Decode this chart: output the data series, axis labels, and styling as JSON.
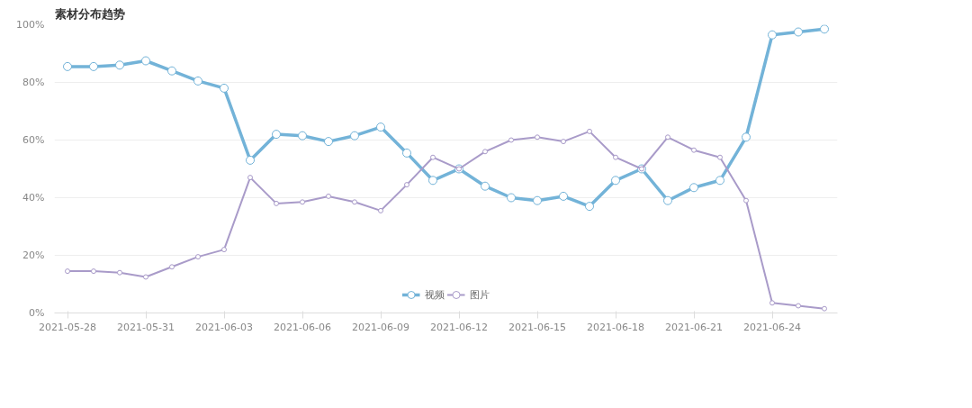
{
  "chart_data": {
    "type": "line",
    "title": "素材分布趋势",
    "x": [
      "2021-05-28",
      "2021-05-29",
      "2021-05-30",
      "2021-05-31",
      "2021-06-01",
      "2021-06-02",
      "2021-06-03",
      "2021-06-04",
      "2021-06-05",
      "2021-06-06",
      "2021-06-07",
      "2021-06-08",
      "2021-06-09",
      "2021-06-10",
      "2021-06-11",
      "2021-06-12",
      "2021-06-13",
      "2021-06-14",
      "2021-06-15",
      "2021-06-16",
      "2021-06-17",
      "2021-06-18",
      "2021-06-19",
      "2021-06-20",
      "2021-06-21",
      "2021-06-22",
      "2021-06-23",
      "2021-06-24",
      "2021-06-25",
      "2021-06-26"
    ],
    "series": [
      {
        "name": "视频",
        "color": "#73b3d8",
        "values": [
          85.5,
          85.5,
          86,
          87.5,
          84,
          80.5,
          78,
          53,
          62,
          61.5,
          59.5,
          61.5,
          64.5,
          55.5,
          46,
          50,
          44,
          40,
          39,
          40.5,
          37,
          46,
          50,
          39,
          43.5,
          46,
          61,
          96.5,
          97.5,
          98.5
        ]
      },
      {
        "name": "图片",
        "color": "#a99bc9",
        "values": [
          14.5,
          14.5,
          14,
          12.5,
          16,
          19.5,
          22,
          47,
          38,
          38.5,
          40.5,
          38.5,
          35.5,
          44.5,
          54,
          50,
          56,
          60,
          61,
          59.5,
          63,
          54,
          50,
          61,
          56.5,
          54,
          39,
          3.5,
          2.5,
          1.5
        ]
      }
    ],
    "xlim": [
      "2021-05-27T12:00",
      "2021-06-26T12:00"
    ],
    "xticks": [
      "2021-05-28",
      "2021-05-31",
      "2021-06-03",
      "2021-06-06",
      "2021-06-09",
      "2021-06-12",
      "2021-06-15",
      "2021-06-18",
      "2021-06-21",
      "2021-06-24"
    ],
    "ylim": [
      0,
      100
    ],
    "yticks": [
      {
        "value": 0,
        "label": "0%"
      },
      {
        "value": 20,
        "label": "20%"
      },
      {
        "value": 40,
        "label": "40%"
      },
      {
        "value": 60,
        "label": "60%"
      },
      {
        "value": 80,
        "label": "80%"
      },
      {
        "value": 100,
        "label": "100%"
      }
    ],
    "grid": "y",
    "legend": "bottom",
    "marker": "circle",
    "line_style": "solid"
  }
}
